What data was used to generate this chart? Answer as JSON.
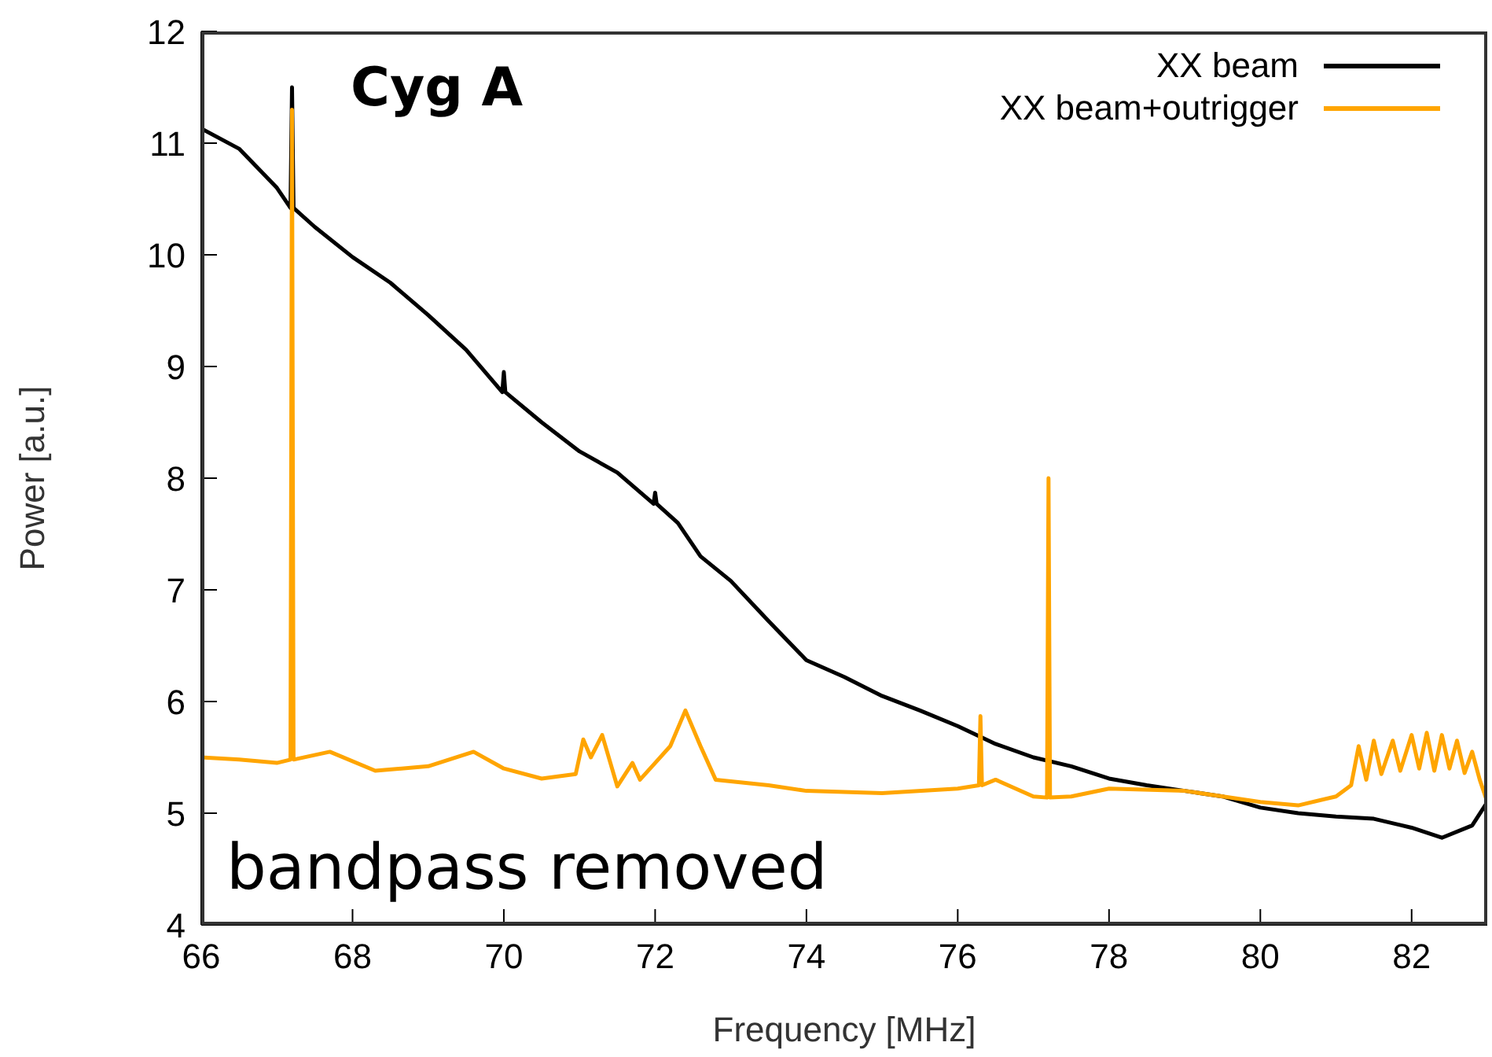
{
  "chart_data": {
    "type": "line",
    "xlabel": "Frequency [MHz]",
    "ylabel": "Power [a.u.]",
    "annotations": [
      "Cyg A",
      "bandpass removed"
    ],
    "xlim": [
      66,
      83
    ],
    "xticks": [
      66,
      68,
      70,
      72,
      74,
      76,
      78,
      80,
      82
    ],
    "ylim": [
      4,
      12
    ],
    "yticks": [
      4,
      5,
      6,
      7,
      8,
      9,
      10,
      11,
      12
    ],
    "grid": false,
    "legend": "top right",
    "line_style": "solid",
    "marker": "none",
    "series": [
      {
        "name": "XX beam",
        "color": "#000000",
        "x": [
          66,
          66.5,
          67,
          67.18,
          67.2,
          67.22,
          67.5,
          68,
          68.5,
          69,
          69.5,
          69.98,
          70,
          70.02,
          70.5,
          71,
          71.5,
          71.98,
          72,
          72.02,
          72.3,
          72.6,
          73,
          73.5,
          74,
          74.5,
          75,
          75.5,
          76,
          76.5,
          77,
          77.5,
          78,
          78.5,
          79,
          79.5,
          80,
          80.5,
          81,
          81.5,
          82,
          82.4,
          82.8,
          83
        ],
        "values": [
          11.13,
          10.95,
          10.6,
          10.42,
          11.5,
          10.42,
          10.25,
          9.98,
          9.75,
          9.46,
          9.15,
          8.77,
          8.95,
          8.77,
          8.5,
          8.24,
          8.05,
          7.77,
          7.87,
          7.77,
          7.6,
          7.3,
          7.08,
          6.72,
          6.37,
          6.22,
          6.05,
          5.92,
          5.78,
          5.62,
          5.5,
          5.42,
          5.31,
          5.25,
          5.2,
          5.15,
          5.05,
          5.0,
          4.97,
          4.95,
          4.87,
          4.78,
          4.89,
          5.1
        ]
      },
      {
        "name": "XX beam+outrigger",
        "color": "#ffa500",
        "x": [
          66,
          66.5,
          67,
          67.18,
          67.2,
          67.22,
          67.7,
          68.3,
          69,
          69.6,
          70,
          70.5,
          70.95,
          71.05,
          71.15,
          71.3,
          71.5,
          71.7,
          71.8,
          72,
          72.2,
          72.4,
          72.6,
          72.8,
          73.5,
          74,
          75,
          76,
          76.28,
          76.3,
          76.32,
          76.5,
          77,
          77.18,
          77.2,
          77.22,
          77.5,
          78,
          79,
          80,
          80.5,
          81,
          81.2,
          81.3,
          81.4,
          81.5,
          81.6,
          81.75,
          81.85,
          82,
          82.1,
          82.2,
          82.3,
          82.4,
          82.5,
          82.6,
          82.7,
          82.8,
          82.9,
          83
        ],
        "values": [
          5.5,
          5.48,
          5.45,
          5.48,
          11.3,
          5.48,
          5.55,
          5.38,
          5.42,
          5.55,
          5.4,
          5.31,
          5.35,
          5.66,
          5.5,
          5.7,
          5.24,
          5.45,
          5.3,
          5.45,
          5.6,
          5.92,
          5.6,
          5.3,
          5.25,
          5.2,
          5.18,
          5.22,
          5.25,
          5.87,
          5.25,
          5.3,
          5.15,
          5.14,
          8.0,
          5.14,
          5.15,
          5.22,
          5.2,
          5.1,
          5.07,
          5.15,
          5.25,
          5.6,
          5.3,
          5.65,
          5.35,
          5.65,
          5.38,
          5.7,
          5.4,
          5.72,
          5.38,
          5.7,
          5.4,
          5.65,
          5.36,
          5.55,
          5.3,
          5.1
        ]
      }
    ]
  }
}
